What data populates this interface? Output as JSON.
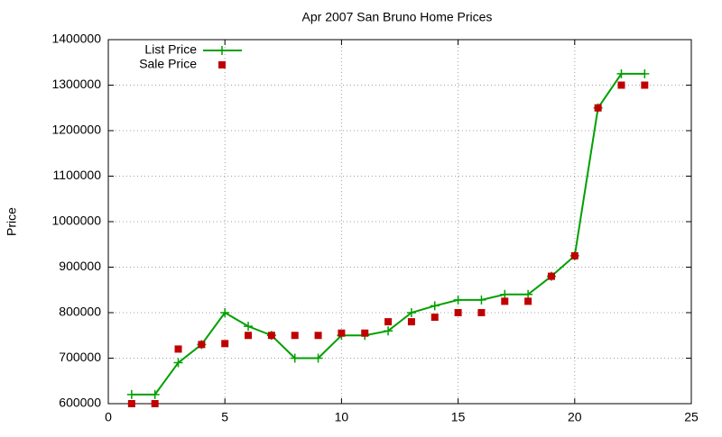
{
  "chart_data": {
    "type": "line",
    "title": "Apr 2007 San Bruno Home Prices",
    "y_label": "Price",
    "x": [
      1,
      2,
      3,
      4,
      5,
      6,
      7,
      8,
      9,
      10,
      11,
      12,
      13,
      14,
      15,
      16,
      17,
      18,
      19,
      20,
      21,
      22,
      23
    ],
    "series": [
      {
        "name": "List Price",
        "color": "#00a000",
        "style": "linespoints",
        "values": [
          620000,
          620000,
          690000,
          730000,
          800000,
          770000,
          750000,
          700000,
          700000,
          750000,
          750000,
          760000,
          800000,
          815000,
          828000,
          828000,
          840000,
          840000,
          880000,
          925000,
          1250000,
          1325000,
          1325000
        ]
      },
      {
        "name": "Sale Price",
        "color": "#c00000",
        "style": "points",
        "values": [
          600000,
          600000,
          720000,
          730000,
          732000,
          750000,
          750000,
          750000,
          750000,
          755000,
          755000,
          780000,
          780000,
          790000,
          800000,
          800000,
          825000,
          825000,
          880000,
          925000,
          1250000,
          1300000,
          1300000
        ]
      }
    ],
    "xlim": [
      0,
      25
    ],
    "xticks": [
      0,
      5,
      10,
      15,
      20,
      25
    ],
    "ylim": [
      600000,
      1400000
    ],
    "yticks": [
      600000,
      700000,
      800000,
      900000,
      1000000,
      1100000,
      1200000,
      1300000,
      1400000
    ],
    "grid": true,
    "legend": "top-left"
  }
}
